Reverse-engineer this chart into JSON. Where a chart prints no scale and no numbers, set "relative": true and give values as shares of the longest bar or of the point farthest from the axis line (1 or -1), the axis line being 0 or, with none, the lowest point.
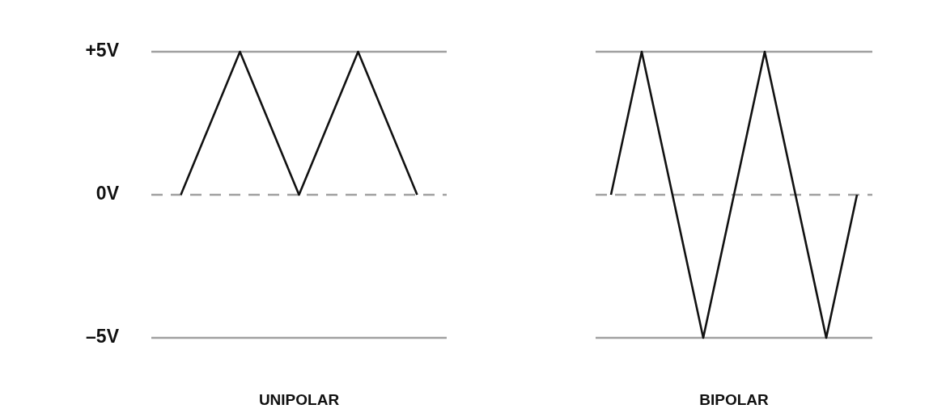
{
  "chart_data": [
    {
      "type": "line",
      "xlabel": "UNIPOLAR",
      "categories": [
        null,
        null,
        null,
        null,
        null
      ],
      "values": [
        0,
        5,
        0,
        5,
        0
      ],
      "color": "#111111",
      "ylim": [
        -5,
        5
      ],
      "yticks": [
        {
          "value": 5,
          "label": "+5V"
        },
        {
          "value": 0,
          "label": "0V"
        },
        {
          "value": -5,
          "label": "–5V"
        }
      ],
      "tick_labels": "y",
      "marker": "none",
      "line_style": "solid",
      "ref_lines": [
        {
          "axis": "y",
          "value": 5,
          "color": "#a0a0a0",
          "line_style": "solid"
        },
        {
          "axis": "y",
          "value": 0,
          "color": "#a0a0a0",
          "line_style": "dashed"
        },
        {
          "axis": "y",
          "value": -5,
          "color": "#a0a0a0",
          "line_style": "solid"
        }
      ]
    },
    {
      "type": "line",
      "xlabel": "BIPOLAR",
      "categories": [
        null,
        null,
        null,
        null,
        null,
        null,
        null,
        null,
        null
      ],
      "values": [
        0,
        1,
        0,
        -1,
        0,
        1,
        0,
        -1,
        0
      ],
      "color": "#111111",
      "relative": true,
      "tick_labels": false,
      "marker": "none",
      "line_style": "solid",
      "ref_lines": [
        {
          "axis": "y",
          "value": 1,
          "color": "#a0a0a0",
          "line_style": "solid"
        },
        {
          "axis": "y",
          "value": 0,
          "color": "#a0a0a0",
          "line_style": "dashed"
        },
        {
          "axis": "y",
          "value": -1,
          "color": "#a0a0a0",
          "line_style": "solid"
        }
      ]
    }
  ]
}
